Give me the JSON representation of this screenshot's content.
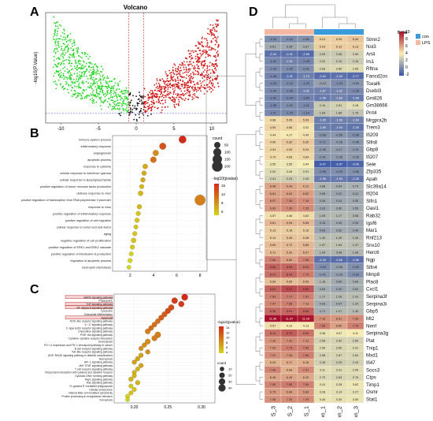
{
  "panels": {
    "a": "A",
    "b": "B",
    "c": "C",
    "d": "D"
  },
  "chart_data": [
    {
      "type": "scatter",
      "panel": "A",
      "title": "Volcano",
      "ylabel": "-log10(P.Value)",
      "x_ticks": [
        "-10",
        "-5",
        "0",
        "5",
        "10"
      ],
      "xlim": [
        -12,
        12
      ],
      "ylim": [
        0,
        15
      ],
      "threshold_x": [
        -1,
        1
      ],
      "threshold_y": 1.3,
      "colors": {
        "down": "#2bd62b",
        "up": "#d11a1a",
        "ns": "#111111",
        "line": "#d11a1a",
        "hline": "#3b3bd6"
      }
    },
    {
      "type": "scatter",
      "panel": "B",
      "terms": [
        "immune system process",
        "inflammatory response",
        "angiogenesis",
        "apoptotic process",
        "response to cytokine",
        "cellular response to interferon−gamma",
        "cellular response to lipopolysaccharide",
        "positive regulation of tumor necrosis factor production",
        "defense response to virus",
        "positive regulation of transcription from RNA polymerase II promoter",
        "response to virus",
        "positive regulation of inflammatory response",
        "positive regulation of cell migration",
        "cellular response to tumor necrosis factor",
        "aging",
        "negative regulation of cell proliferation",
        "positive regulation of ERK1 and ERK2 cascade",
        "positive regulation of interleukin−6 production",
        "regulation of apoptotic process",
        "neutrophil chemotaxis"
      ],
      "x": [
        6.5,
        4.8,
        4.2,
        4.0,
        3.3,
        3.2,
        3.1,
        3.0,
        2.9,
        8.0,
        2.8,
        2.7,
        2.6,
        2.5,
        2.4,
        2.3,
        2.2,
        2.1,
        2.0,
        1.9
      ],
      "count": [
        80,
        60,
        40,
        45,
        25,
        20,
        20,
        18,
        25,
        200,
        20,
        18,
        20,
        15,
        18,
        25,
        18,
        15,
        18,
        12
      ],
      "color_value": [
        15,
        12,
        8,
        10,
        6,
        6,
        6,
        5,
        5,
        9,
        5,
        4,
        4,
        4,
        4,
        4,
        4,
        3,
        3,
        3
      ],
      "x_ticks": [
        "2",
        "4",
        "6",
        "8"
      ],
      "xlim": [
        0.5,
        8.6
      ],
      "legend_size_title": "count",
      "legend_sizes": [
        "50",
        "100",
        "150",
        "200"
      ],
      "legend_color_title": "-log10(pvalue)",
      "legend_color_ticks": [
        "15",
        "12",
        "9",
        "6"
      ],
      "gradient": [
        "#d42a1a",
        "#d4d41a"
      ]
    },
    {
      "type": "scatter",
      "panel": "C",
      "terms": [
        "MAPK signaling pathway",
        "Phagosome",
        "TNF signaling pathway",
        "NF−kappa B signaling pathway",
        "Lysosome",
        "Osteoclast differentiation",
        "Apoptosis",
        "NOD−like receptor signaling pathway",
        "IL−17 signaling pathway",
        "C−type lectin receptor signaling pathway",
        "Chemokine signaling pathway",
        "PI3K−Akt signaling pathway",
        "Cytokine−cytokine receptor interaction",
        "Endocytosis",
        "PD−L1 expression and PD−1 checkpoint pathway in cancer",
        "B cell receptor signaling pathway",
        "Toll−like receptor signaling pathway",
        "AGE−RAGE signaling pathway in diabetic complications",
        "Necroptosis",
        "HIF−1 signaling pathway",
        "JAK−STAT signaling pathway",
        "T cell receptor signaling pathway",
        "Viral protein interaction with cytokine and cytokine receptor",
        "Cytosolic DNA−sensing pathway",
        "Rap1 signaling pathway",
        "Ras signaling pathway",
        "Fc gamma R−mediated phagocytosis",
        "Cellular senescence",
        "Natural killer cell mediated cytotoxicity",
        "Protein processing in endoplasmic reticulum",
        "Ferroptosis"
      ],
      "x": [
        0.275,
        0.26,
        0.27,
        0.255,
        0.25,
        0.245,
        0.24,
        0.235,
        0.23,
        0.225,
        0.22,
        0.235,
        0.23,
        0.22,
        0.215,
        0.21,
        0.22,
        0.21,
        0.205,
        0.2,
        0.21,
        0.205,
        0.2,
        0.2,
        0.195,
        0.205,
        0.195,
        0.2,
        0.195,
        0.19,
        0.19
      ],
      "count": [
        30,
        25,
        22,
        22,
        20,
        18,
        18,
        15,
        15,
        15,
        18,
        25,
        20,
        18,
        12,
        12,
        12,
        12,
        12,
        12,
        12,
        10,
        10,
        10,
        12,
        12,
        10,
        10,
        10,
        10,
        8
      ],
      "color_value": [
        14,
        13,
        13,
        12,
        12,
        11,
        11,
        10,
        10,
        10,
        9,
        9,
        9,
        8,
        8,
        8,
        8,
        7,
        7,
        7,
        7,
        6,
        6,
        6,
        6,
        6,
        5,
        5,
        5,
        4,
        4
      ],
      "highlighted": [
        0,
        2,
        3,
        6
      ],
      "x_ticks": [
        "0.20",
        "0.25",
        "0.30"
      ],
      "xlim": [
        0.17,
        0.32
      ],
      "legend_color_title": "-log10(pvalue)",
      "legend_color_ticks": [
        "14",
        "12",
        "10",
        "8",
        "6",
        "4"
      ],
      "legend_size_title": "count",
      "legend_sizes": [
        "10",
        "20",
        "30",
        "40"
      ],
      "gradient": [
        "#d42a1a",
        "#d4d41a"
      ]
    },
    {
      "type": "heatmap",
      "panel": "D",
      "columns": [
        "LPS_3",
        "LPS_2",
        "LPS_1",
        "con_1",
        "con_2",
        "con_3"
      ],
      "column_type": [
        "LPS",
        "LPS",
        "LPS",
        "con",
        "con",
        "con"
      ],
      "genes": [
        "Stmn2",
        "Noi3",
        "Art4",
        "Irs1",
        "Rftna",
        "Fancd2os",
        "Tceal6",
        "Duxbl3",
        "Gm826",
        "Gm38666",
        "Prrt4",
        "Mrgpra2b",
        "Trem3",
        "Ifi209",
        "Slfn8",
        "Gbp8",
        "Ifi207",
        "Sele",
        "Zfp335",
        "Apah",
        "Slc39a14",
        "Ifi204",
        "Slfn1",
        "Oasl1",
        "Rab32",
        "Igsf6",
        "Mar1",
        "Rnf213",
        "Snx10",
        "Herc6",
        "Ngp",
        "Slfn4",
        "Mmp8",
        "Plac8",
        "Cxcl1",
        "Serpina3f",
        "Serpina3i",
        "Gbp5",
        "Mt2",
        "Nenf",
        "Serpina3g",
        "Plat",
        "Tnip1",
        "Mxd1",
        "Ifi47",
        "Socs3",
        "Ctps",
        "Timp1",
        "Osmr",
        "Stat1"
      ],
      "values": [
        [
          -1.03,
          -1.02,
          -0.82,
          5.01,
          5.09,
          5.4
        ],
        [
          0.51,
          0.25,
          0.67,
          5.04,
          5.12,
          5.13
        ],
        [
          -2.4,
          -2.41,
          -2.69,
          2.09,
          2.06,
          2.5
        ],
        [
          -1.31,
          -1.51,
          -1.43,
          2.22,
          2.1,
          2.16
        ],
        [
          -1.03,
          -1.05,
          -0.91,
          2.63,
          2.8,
          2.95
        ],
        [
          -1.46,
          -2.41,
          -1.74,
          -2.64,
          -2.4,
          -2.77
        ],
        [
          -1.23,
          -1.14,
          -1.23,
          -0.1,
          -1.04,
          -0.6
        ],
        [
          -1.2,
          -1.26,
          -1.62,
          -1.67,
          -1.52,
          -1.25
        ],
        [
          -1.41,
          -1.4,
          -1.5,
          -1.98,
          -1.6,
          -1.98
        ],
        [
          -1.36,
          -1.01,
          -1.21,
          2.1,
          2.51,
          3.18
        ],
        [
          -1.27,
          -1.15,
          -1.14,
          1.64,
          1.86,
          1.75
        ],
        [
          4.68,
          5.05,
          5.09,
          -1.85,
          -1.66,
          -1.64
        ],
        [
          4.9,
          4.85,
          4.32,
          -1.8,
          -1.93,
          -2.25
        ],
        [
          4.44,
          4.17,
          4.49,
          -0.66,
          -0.56,
          -0.96
        ],
        [
          4.96,
          5.32,
          5.3,
          -0.71,
          -0.28,
          -0.48
        ],
        [
          4.94,
          4.99,
          5.04,
          -0.35,
          -0.17,
          -0.31
        ],
        [
          4.74,
          4.68,
          4.84,
          -0.41,
          -0.26,
          -0.35
        ],
        [
          3.55,
          3.55,
          3.94,
          -3.47,
          -3.37,
          -3.06
        ],
        [
          2.92,
          3.26,
          2.91,
          -0.99,
          -0.93,
          -0.86
        ],
        [
          2.41,
          2.23,
          2.45,
          -1.98,
          -1.93,
          -2.25
        ],
        [
          6.48,
          6.43,
          6.12,
          0.88,
          0.64,
          0.79
        ],
        [
          6.61,
          6.62,
          6.62,
          0.58,
          0.22,
          0.31
        ],
        [
          6.97,
          7.35,
          7.19,
          0.34,
          0.24,
          0.35
        ],
        [
          6.9,
          7.26,
          7.25,
          0.33,
          0.6,
          0.55
        ],
        [
          4.57,
          4.46,
          4.62,
          1.09,
          1.17,
          0.98
        ],
        [
          5.81,
          5.94,
          5.85,
          0.15,
          0.45,
          0.3
        ],
        [
          5.13,
          5.18,
          5.16,
          0.09,
          0.52,
          0.4
        ],
        [
          5.14,
          5.45,
          5.36,
          1.4,
          1.4,
          1.34
        ],
        [
          5.69,
          5.72,
          5.85,
          1.57,
          1.64,
          1.47
        ],
        [
          5.72,
          5.92,
          6.07,
          1.09,
          0.98,
          1.08
        ],
        [
          7.6,
          6.62,
          7.56,
          -2.4,
          -2.56,
          -2.56
        ],
        [
          8.6,
          8.54,
          8.03,
          -0.93,
          -0.06,
          -0.92
        ],
        [
          8.21,
          8.44,
          7.79,
          -0.41,
          -0.09,
          -0.83
        ],
        [
          5.56,
          5.65,
          6.0,
          1.18,
          0.5,
          0.69
        ],
        [
          8.61,
          9.37,
          9.09,
          0.63,
          0.2,
          0.62
        ],
        [
          7.63,
          7.77,
          7.61,
          1.17,
          1.26,
          1.41
        ],
        [
          7.47,
          7.66,
          7.13,
          0.63,
          0.67,
          1.24
        ],
        [
          8.38,
          8.51,
          8.65,
          0.71,
          1.27,
          1.3
        ],
        [
          11.36,
          11.37,
          11.16,
          7.16,
          6.91,
          7.3
        ],
        [
          4.57,
          4.12,
          4.13,
          7.68,
          6.6,
          7.75
        ],
        [
          8.14,
          8.76,
          8.09,
          3.36,
          3.67,
          4.11
        ],
        [
          7.1,
          7.31,
          7.12,
          2.58,
          2.52,
          2.5
        ],
        [
          7.05,
          7.75,
          7.65,
          2.9,
          2.6,
          2.91
        ],
        [
          7.22,
          7.06,
          7.66,
          2.56,
          2.67,
          2.64
        ],
        [
          6.03,
          6.17,
          6.18,
          2.45,
          2.25,
          2.43
        ],
        [
          7.49,
          6.08,
          7.37,
          3.11,
          2.91,
          2.99
        ],
        [
          6.48,
          6.49,
          6.32,
          2.79,
          2.63,
          2.76
        ],
        [
          7.5,
          7.83,
          7.6,
          3.41,
          3.28,
          3.62
        ],
        [
          6.79,
          6.66,
          6.89,
          3.28,
          3.14,
          3.27
        ],
        [
          7.08,
          7.25,
          7.29,
          3.4,
          3.3,
          3.5
        ]
      ],
      "legend_title": "type",
      "legend_types": [
        "con",
        "LPS"
      ],
      "type_colors": {
        "con": "#3b9ad9",
        "LPS": "#f2b8a2"
      },
      "color_scale_ticks": [
        "10",
        "8",
        "6",
        "4",
        "2",
        "0",
        "-2"
      ],
      "scale": [
        "#3753a8",
        "#f7eeb4",
        "#a5102a"
      ]
    }
  ]
}
